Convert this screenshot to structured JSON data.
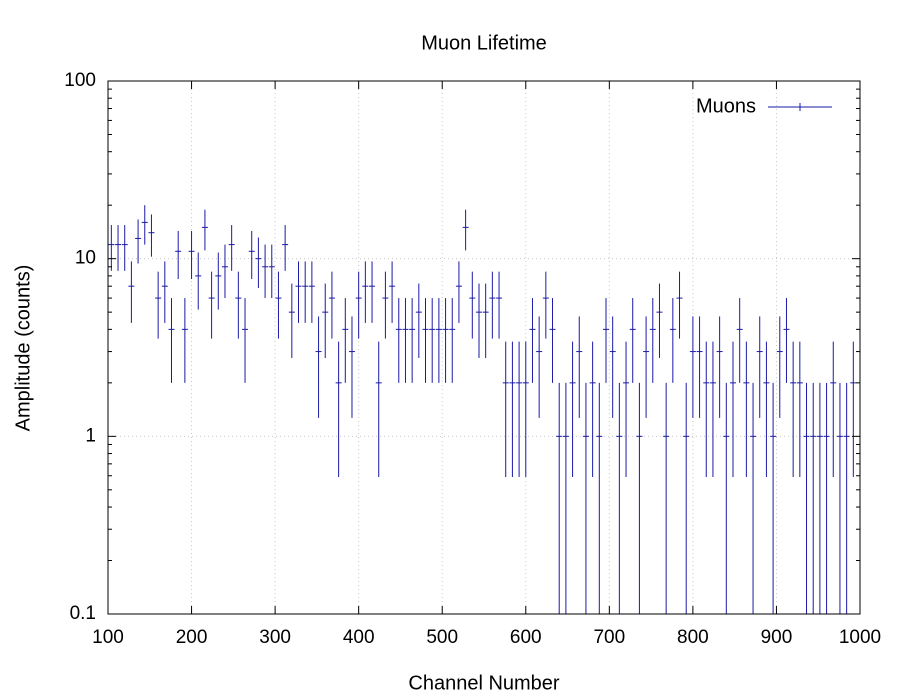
{
  "chart_data": {
    "type": "errorbar",
    "title": "Muon Lifetime",
    "xlabel": "Channel Number",
    "ylabel": "Amplitude (counts)",
    "yscale": "log",
    "grid": true,
    "legend": "top-right",
    "xlim": [
      100,
      1000
    ],
    "xticks": [
      100,
      200,
      300,
      400,
      500,
      600,
      700,
      800,
      900,
      1000
    ],
    "ylim": [
      0.1,
      100
    ],
    "yticks": [
      0.1,
      1,
      10,
      100
    ],
    "x": [
      104,
      112,
      120,
      128,
      136,
      144,
      152,
      160,
      168,
      176,
      184,
      192,
      200,
      208,
      216,
      224,
      232,
      240,
      248,
      256,
      264,
      272,
      280,
      288,
      296,
      304,
      312,
      320,
      328,
      336,
      344,
      352,
      360,
      368,
      376,
      384,
      392,
      400,
      408,
      416,
      424,
      432,
      440,
      448,
      456,
      464,
      472,
      480,
      488,
      496,
      504,
      512,
      520,
      528,
      536,
      544,
      552,
      560,
      568,
      576,
      584,
      592,
      600,
      608,
      616,
      624,
      632,
      640,
      648,
      656,
      664,
      672,
      680,
      688,
      696,
      704,
      712,
      720,
      728,
      736,
      744,
      752,
      760,
      768,
      776,
      784,
      792,
      800,
      808,
      816,
      824,
      832,
      840,
      848,
      856,
      864,
      872,
      880,
      888,
      896,
      904,
      912,
      920,
      928,
      936,
      944,
      952,
      960,
      968,
      976,
      984,
      992
    ],
    "series": [
      {
        "name": "Muons",
        "color": "#1a1aa6",
        "values": [
          12,
          12,
          12,
          7,
          13,
          16,
          14,
          6,
          7,
          4,
          11,
          4,
          11,
          8,
          15,
          6,
          8,
          9,
          12,
          6,
          4,
          11,
          10,
          9,
          9,
          6,
          12,
          5,
          7,
          7,
          7,
          3,
          5,
          6,
          2,
          4,
          3,
          6,
          7,
          7,
          2,
          6,
          7,
          4,
          4,
          4,
          5,
          4,
          4,
          4,
          4,
          4,
          7,
          15,
          6,
          5,
          5,
          6,
          6,
          2,
          2,
          2,
          2,
          4,
          3,
          6,
          4,
          1,
          1,
          2,
          3,
          1,
          2,
          1,
          4,
          3,
          1,
          2,
          4,
          1,
          3,
          4,
          5,
          1,
          4,
          6,
          1,
          3,
          3,
          2,
          2,
          3,
          1,
          2,
          4,
          2,
          1,
          3,
          2,
          1,
          3,
          4,
          2,
          2,
          1,
          1,
          1,
          1,
          2,
          1,
          1,
          2
        ],
        "errors": [
          3.46,
          3.46,
          3.46,
          2.65,
          3.61,
          4,
          3.74,
          2.45,
          2.65,
          2,
          3.32,
          2,
          3.32,
          2.83,
          3.87,
          2.45,
          2.83,
          3,
          3.46,
          2.45,
          2,
          3.32,
          3.16,
          3,
          3,
          2.45,
          3.46,
          2.24,
          2.65,
          2.65,
          2.65,
          1.73,
          2.24,
          2.45,
          1.41,
          2,
          1.73,
          2.45,
          2.65,
          2.65,
          1.41,
          2.45,
          2.65,
          2,
          2,
          2,
          2.24,
          2,
          2,
          2,
          2,
          2,
          2.65,
          3.87,
          2.45,
          2.24,
          2.24,
          2.45,
          2.45,
          1.41,
          1.41,
          1.41,
          1.41,
          2,
          1.73,
          2.45,
          2,
          1,
          1,
          1.41,
          1.73,
          1,
          1.41,
          1,
          2,
          1.73,
          1,
          1.41,
          2,
          1,
          1.73,
          2,
          2.24,
          1,
          2,
          2.45,
          1,
          1.73,
          1.73,
          1.41,
          1.41,
          1.73,
          1,
          1.41,
          2,
          1.41,
          1,
          1.73,
          1.41,
          1,
          1.73,
          2,
          1.41,
          1.41,
          1,
          1,
          1,
          1,
          1.41,
          1,
          1,
          1.41
        ]
      }
    ]
  }
}
